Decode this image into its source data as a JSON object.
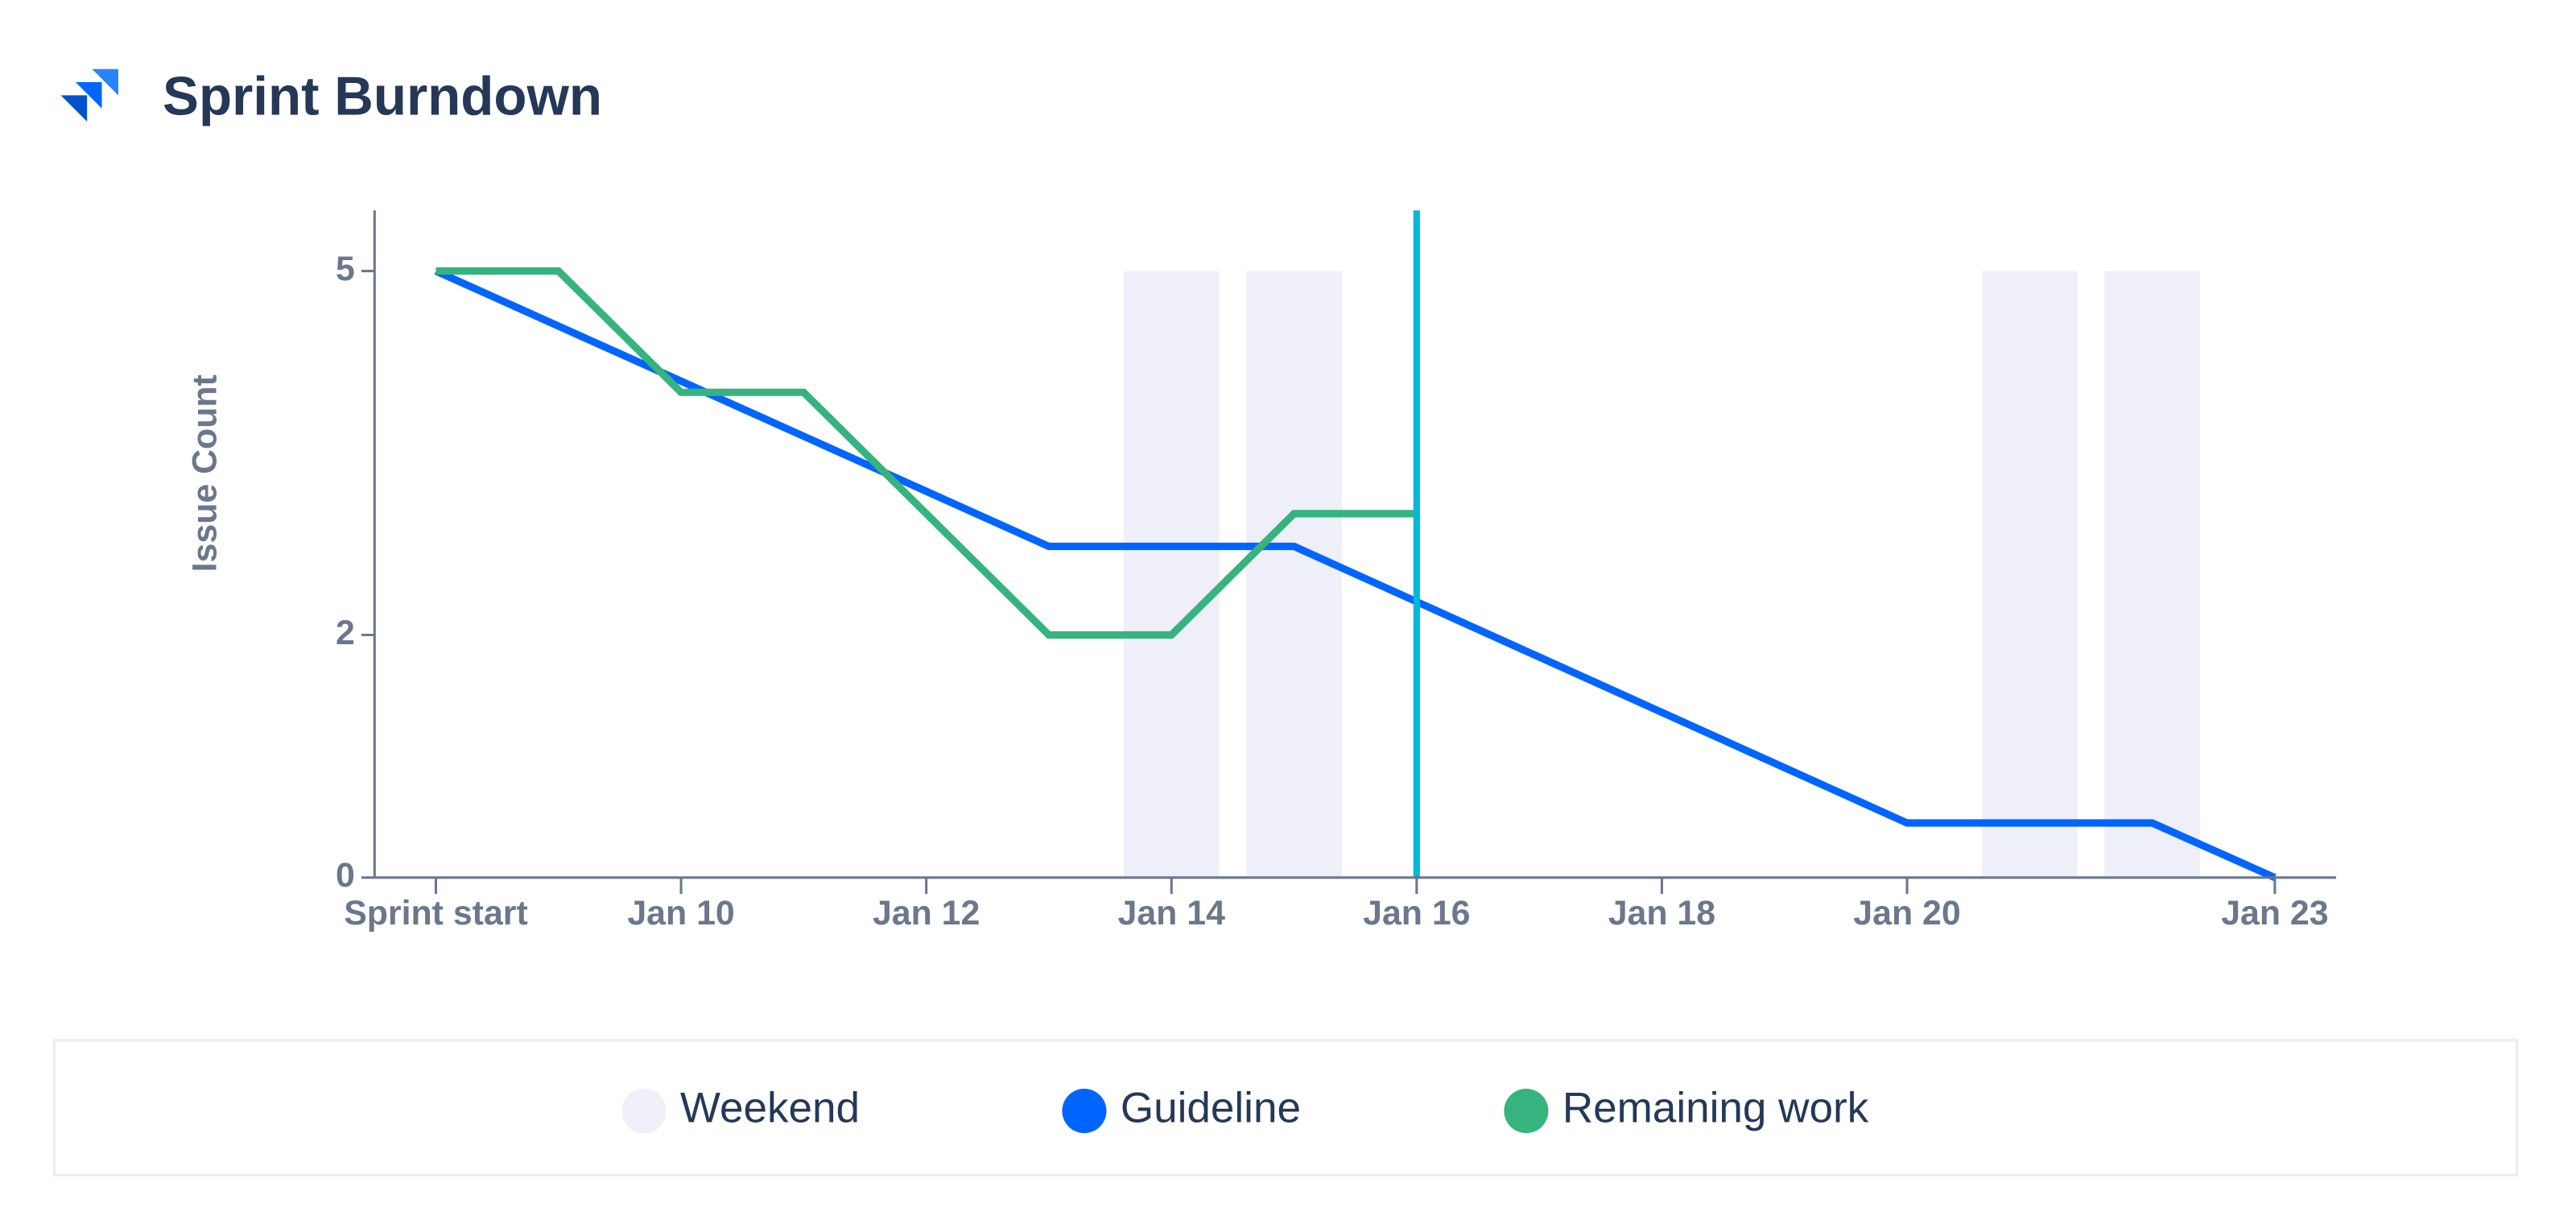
{
  "chart_data": {
    "type": "line",
    "title": "Sprint Burndown",
    "y_label": "Issue Count",
    "xlim": [
      7.5,
      23.5
    ],
    "xticks": [
      {
        "value": 8,
        "label": "Sprint start"
      },
      {
        "value": 10,
        "label": "Jan 10"
      },
      {
        "value": 12,
        "label": "Jan 12"
      },
      {
        "value": 14,
        "label": "Jan 14"
      },
      {
        "value": 16,
        "label": "Jan 16"
      },
      {
        "value": 18,
        "label": "Jan 18"
      },
      {
        "value": 20,
        "label": "Jan 20"
      },
      {
        "value": 23,
        "label": "Jan 23"
      }
    ],
    "ylim": [
      0,
      5.5
    ],
    "yticks": [
      0,
      2,
      5
    ],
    "today_x": 16,
    "today_color": "#00b8d9",
    "series": [
      {
        "name": "Weekend",
        "type": "bar",
        "color": "#eeeff9",
        "x": [
          14,
          15,
          21,
          22
        ],
        "values": [
          5,
          5,
          5,
          5
        ]
      },
      {
        "name": "Guideline",
        "type": "line",
        "color": "#0065ff",
        "x": [
          8,
          13,
          15,
          20,
          22,
          23
        ],
        "values": [
          5,
          2.73,
          2.73,
          0.45,
          0.45,
          0
        ]
      },
      {
        "name": "Remaining work",
        "type": "line",
        "color": "#36b37e",
        "x": [
          8,
          9,
          10,
          11,
          13,
          14,
          15,
          16
        ],
        "values": [
          5,
          5,
          4,
          4,
          2,
          2,
          3,
          3
        ]
      }
    ]
  }
}
